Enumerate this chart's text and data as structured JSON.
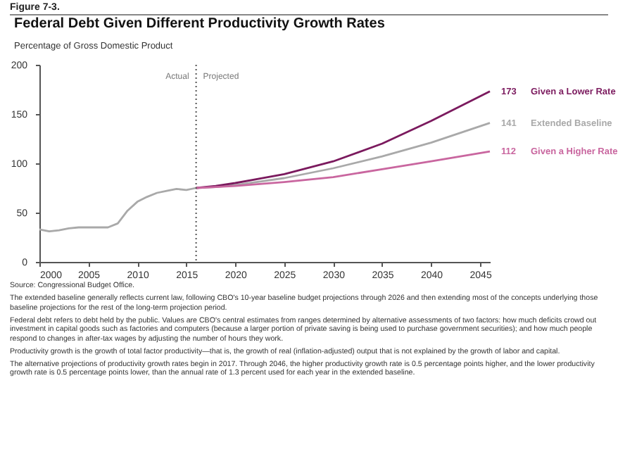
{
  "chart_data": {
    "type": "line",
    "title": "Federal Debt Given Different Productivity Growth Rates",
    "subtitle": "Percentage of Gross Domestic Product",
    "xlim": [
      2000,
      2046
    ],
    "xticks": [
      2000,
      2005,
      2010,
      2015,
      2020,
      2025,
      2030,
      2035,
      2040,
      2045
    ],
    "ylim": [
      0,
      200
    ],
    "yticks": [
      0,
      50,
      100,
      150,
      200
    ],
    "grid": false,
    "series": [
      {
        "name": "Extended Baseline",
        "color": "#a9a9a9",
        "x": [
          2000,
          2001,
          2002,
          2003,
          2004,
          2005,
          2006,
          2007,
          2008,
          2009,
          2010,
          2011,
          2012,
          2013,
          2014,
          2015,
          2016,
          2018,
          2020,
          2025,
          2030,
          2035,
          2040,
          2046
        ],
        "values": [
          33,
          31,
          32,
          34,
          35,
          35,
          35,
          35,
          39,
          52,
          61,
          66,
          70,
          72,
          74,
          73,
          75,
          76,
          78,
          85,
          95,
          107,
          121,
          141
        ],
        "value_labels": [
          null,
          null,
          null,
          null,
          null,
          null,
          null,
          null,
          null,
          null,
          null,
          null,
          null,
          null,
          null,
          null,
          null,
          null,
          null,
          null,
          null,
          null,
          null,
          "141"
        ]
      },
      {
        "name": "Given a Lower Rate",
        "color": "#7b1a5e",
        "x": [
          2016,
          2018,
          2020,
          2025,
          2030,
          2035,
          2040,
          2046
        ],
        "values": [
          75,
          77,
          80,
          89,
          102,
          120,
          143,
          173
        ],
        "value_labels": [
          null,
          null,
          null,
          null,
          null,
          null,
          null,
          "173"
        ]
      },
      {
        "name": "Given a Higher Rate",
        "color": "#c9669f",
        "x": [
          2016,
          2018,
          2020,
          2025,
          2030,
          2035,
          2040,
          2046
        ],
        "values": [
          75,
          76,
          77,
          81,
          86,
          94,
          102,
          112
        ],
        "value_labels": [
          null,
          null,
          null,
          null,
          null,
          null,
          null,
          "112"
        ]
      }
    ],
    "ref_lines": [
      {
        "axis": "x",
        "value": 2016,
        "line_style": "dotted",
        "color": "#555555",
        "label": "Actual"
      }
    ],
    "annotations": [
      "Figure 7-3.",
      "Projected",
      "Source: Congressional Budget Office.",
      "The extended baseline generally reflects current law, following CBO's 10-year baseline budget projections through 2026 and then extending most of the concepts underlying those baseline projections for the rest of the long-term projection period.",
      "Federal debt refers to debt held by the public. Values are CBO's central estimates from ranges determined by alternative assessments of two factors: how much deficits crowd out investment in capital goods such as factories and computers (because a larger portion of private saving is being used to purchase government securities); and how much people respond to changes in after-tax wages by adjusting the number of hours they work.",
      "Productivity growth is the growth of total factor productivity—that is, the growth of real (inflation-adjusted) output that is not explained by the growth of labor and capital.",
      "The alternative projections of productivity growth rates begin in 2017. Through 2046, the higher productivity growth rate is 0.5 percentage points higher, and the lower productivity growth rate is 0.5 percentage points lower, than the annual rate of 1.3 percent used for each year in the extended baseline."
    ]
  }
}
